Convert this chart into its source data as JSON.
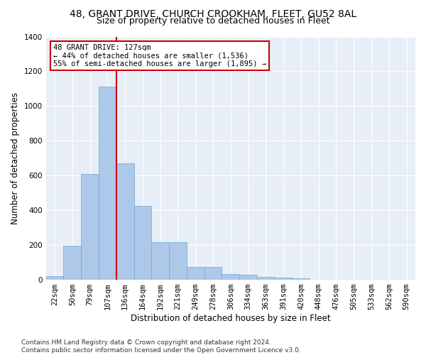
{
  "title1": "48, GRANT DRIVE, CHURCH CROOKHAM, FLEET, GU52 8AL",
  "title2": "Size of property relative to detached houses in Fleet",
  "xlabel": "Distribution of detached houses by size in Fleet",
  "ylabel": "Number of detached properties",
  "categories": [
    "22sqm",
    "50sqm",
    "79sqm",
    "107sqm",
    "136sqm",
    "164sqm",
    "192sqm",
    "221sqm",
    "249sqm",
    "278sqm",
    "306sqm",
    "334sqm",
    "363sqm",
    "391sqm",
    "420sqm",
    "448sqm",
    "476sqm",
    "505sqm",
    "533sqm",
    "562sqm",
    "590sqm"
  ],
  "values": [
    20,
    195,
    610,
    1110,
    670,
    425,
    215,
    215,
    75,
    75,
    35,
    30,
    15,
    13,
    8,
    0,
    0,
    0,
    0,
    0,
    0
  ],
  "bar_color": "#adc8e8",
  "bar_edge_color": "#6aaad4",
  "vline_color": "#cc0000",
  "vline_x_index": 4,
  "ylim": [
    0,
    1400
  ],
  "yticks": [
    0,
    200,
    400,
    600,
    800,
    1000,
    1200,
    1400
  ],
  "background_color": "#e8eef8",
  "annotation_text_line1": "48 GRANT DRIVE: 127sqm",
  "annotation_text_line2": "← 44% of detached houses are smaller (1,536)",
  "annotation_text_line3": "55% of semi-detached houses are larger (1,895) →",
  "footer_line1": "Contains HM Land Registry data © Crown copyright and database right 2024.",
  "footer_line2": "Contains public sector information licensed under the Open Government Licence v3.0.",
  "title1_fontsize": 10,
  "title2_fontsize": 9,
  "xlabel_fontsize": 8.5,
  "ylabel_fontsize": 8.5,
  "tick_fontsize": 7.5,
  "annotation_fontsize": 7.5,
  "footer_fontsize": 6.5
}
